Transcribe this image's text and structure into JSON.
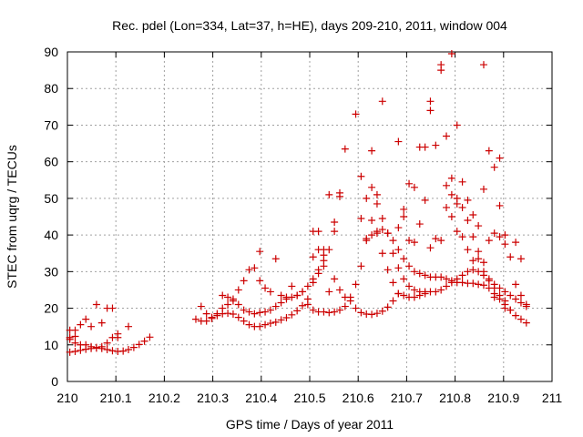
{
  "chart_data": {
    "type": "scatter",
    "title": "Rec. pdel (Lon=334, Lat=37, h=HE), days 209-210, 2011, window 004",
    "xlabel": "GPS time / Days of year 2011",
    "ylabel": "STEC from uqrg / TECUs",
    "xlim": [
      210,
      211
    ],
    "ylim": [
      0,
      90
    ],
    "x_ticks": [
      "210",
      "210.1",
      "210.2",
      "210.3",
      "210.4",
      "210.5",
      "210.6",
      "210.7",
      "210.8",
      "210.9",
      "211"
    ],
    "y_ticks": [
      "0",
      "10",
      "20",
      "30",
      "40",
      "50",
      "60",
      "70",
      "80",
      "90"
    ],
    "x_tick_values": [
      210,
      210.1,
      210.2,
      210.3,
      210.4,
      210.5,
      210.6,
      210.7,
      210.8,
      210.9,
      211
    ],
    "y_tick_values": [
      0,
      10,
      20,
      30,
      40,
      50,
      60,
      70,
      80,
      90
    ],
    "grid": true,
    "marker": "plus",
    "marker_color": "#cc0000",
    "series": [
      {
        "values": [
          [
            210.005,
            8.0
          ],
          [
            210.016,
            8.2
          ],
          [
            210.027,
            8.5
          ],
          [
            210.038,
            8.8
          ],
          [
            210.049,
            9.0
          ],
          [
            210.06,
            9.1
          ],
          [
            210.071,
            9.0
          ],
          [
            210.082,
            8.7
          ],
          [
            210.093,
            8.4
          ],
          [
            210.104,
            8.2
          ],
          [
            210.115,
            8.3
          ],
          [
            210.126,
            8.7
          ],
          [
            210.137,
            9.3
          ],
          [
            210.148,
            10.1
          ],
          [
            210.159,
            11.0
          ],
          [
            210.17,
            12.1
          ],
          [
            210.005,
            11.5
          ],
          [
            210.016,
            10.5
          ],
          [
            210.027,
            10.0
          ],
          [
            210.038,
            10.0
          ],
          [
            210.049,
            9.5
          ],
          [
            210.06,
            9.3
          ],
          [
            210.071,
            9.5
          ],
          [
            210.082,
            10.5
          ],
          [
            210.093,
            12.0
          ],
          [
            210.104,
            13.0
          ],
          [
            210.005,
            14.0
          ],
          [
            210.016,
            14.0
          ],
          [
            210.027,
            15.5
          ],
          [
            210.038,
            17.0
          ],
          [
            210.049,
            15.0
          ],
          [
            210.06,
            21.0
          ],
          [
            210.071,
            16.0
          ],
          [
            210.082,
            20.0
          ],
          [
            210.093,
            20.0
          ],
          [
            210.104,
            12.0
          ],
          [
            210.126,
            15.0
          ],
          [
            210.005,
            12.0
          ],
          [
            210.016,
            12.3
          ],
          [
            210.265,
            17.0
          ],
          [
            210.276,
            16.5
          ],
          [
            210.287,
            16.5
          ],
          [
            210.298,
            17.2
          ],
          [
            210.309,
            18.0
          ],
          [
            210.32,
            18.5
          ],
          [
            210.331,
            18.6
          ],
          [
            210.342,
            18.4
          ],
          [
            210.353,
            17.5
          ],
          [
            210.364,
            16.5
          ],
          [
            210.375,
            15.5
          ],
          [
            210.386,
            15.0
          ],
          [
            210.397,
            15.0
          ],
          [
            210.408,
            15.5
          ],
          [
            210.419,
            15.9
          ],
          [
            210.43,
            16.2
          ],
          [
            210.441,
            16.8
          ],
          [
            210.452,
            17.4
          ],
          [
            210.463,
            18.2
          ],
          [
            210.474,
            19.3
          ],
          [
            210.485,
            20.7
          ],
          [
            210.496,
            22.5
          ],
          [
            210.276,
            20.5
          ],
          [
            210.287,
            18.5
          ],
          [
            210.298,
            17.5
          ],
          [
            210.309,
            18.5
          ],
          [
            210.32,
            23.5
          ],
          [
            210.331,
            23.0
          ],
          [
            210.342,
            22.0
          ],
          [
            210.353,
            21.0
          ],
          [
            210.364,
            19.5
          ],
          [
            210.375,
            19.0
          ],
          [
            210.386,
            18.5
          ],
          [
            210.397,
            18.8
          ],
          [
            210.408,
            19.0
          ],
          [
            210.419,
            19.5
          ],
          [
            210.43,
            20.5
          ],
          [
            210.441,
            21.5
          ],
          [
            210.452,
            22.5
          ],
          [
            210.463,
            23.0
          ],
          [
            210.474,
            23.5
          ],
          [
            210.485,
            24.5
          ],
          [
            210.496,
            26.0
          ],
          [
            210.507,
            28.0
          ],
          [
            210.518,
            30.5
          ],
          [
            210.529,
            33.0
          ],
          [
            210.32,
            20.0
          ],
          [
            210.331,
            21.0
          ],
          [
            210.342,
            22.5
          ],
          [
            210.353,
            25.0
          ],
          [
            210.364,
            27.5
          ],
          [
            210.375,
            30.5
          ],
          [
            210.386,
            31.0
          ],
          [
            210.397,
            27.5
          ],
          [
            210.408,
            25.5
          ],
          [
            210.419,
            24.5
          ],
          [
            210.43,
            33.5
          ],
          [
            210.441,
            23.5
          ],
          [
            210.452,
            23.0
          ],
          [
            210.463,
            26.0
          ],
          [
            210.474,
            23.5
          ],
          [
            210.397,
            35.5
          ],
          [
            210.485,
            24.5
          ],
          [
            210.496,
            21.0
          ],
          [
            210.507,
            19.5
          ],
          [
            210.518,
            19.0
          ],
          [
            210.529,
            19.0
          ],
          [
            210.54,
            18.8
          ],
          [
            210.551,
            19.0
          ],
          [
            210.562,
            19.5
          ],
          [
            210.573,
            20.5
          ],
          [
            210.584,
            22.0
          ],
          [
            210.595,
            20.0
          ],
          [
            210.606,
            18.8
          ],
          [
            210.617,
            18.4
          ],
          [
            210.628,
            18.3
          ],
          [
            210.639,
            18.6
          ],
          [
            210.65,
            19.2
          ],
          [
            210.661,
            20.3
          ],
          [
            210.672,
            22.0
          ],
          [
            210.683,
            24.0
          ],
          [
            210.507,
            34.0
          ],
          [
            210.518,
            36.0
          ],
          [
            210.529,
            31.5
          ],
          [
            210.54,
            24.5
          ],
          [
            210.551,
            28.0
          ],
          [
            210.562,
            25.0
          ],
          [
            210.573,
            23.0
          ],
          [
            210.584,
            23.0
          ],
          [
            210.507,
            27.0
          ],
          [
            210.518,
            29.5
          ],
          [
            210.529,
            34.5
          ],
          [
            210.54,
            36.0
          ],
          [
            210.551,
            43.5
          ],
          [
            210.562,
            50.5
          ],
          [
            210.573,
            63.5
          ],
          [
            210.507,
            41.0
          ],
          [
            210.518,
            41.0
          ],
          [
            210.529,
            36.0
          ],
          [
            210.54,
            51.0
          ],
          [
            210.551,
            41.0
          ],
          [
            210.562,
            51.5
          ],
          [
            210.595,
            26.5
          ],
          [
            210.606,
            31.5
          ],
          [
            210.617,
            38.5
          ],
          [
            210.628,
            40.0
          ],
          [
            210.639,
            41.0
          ],
          [
            210.65,
            41.5
          ],
          [
            210.661,
            40.5
          ],
          [
            210.672,
            38.5
          ],
          [
            210.683,
            36.0
          ],
          [
            210.694,
            33.5
          ],
          [
            210.705,
            31.5
          ],
          [
            210.716,
            30.0
          ],
          [
            210.727,
            29.5
          ],
          [
            210.738,
            29.0
          ],
          [
            210.749,
            28.5
          ],
          [
            210.76,
            28.5
          ],
          [
            210.771,
            28.5
          ],
          [
            210.782,
            28.0
          ],
          [
            210.793,
            27.5
          ],
          [
            210.804,
            27.0
          ],
          [
            210.815,
            27.0
          ],
          [
            210.826,
            26.8
          ],
          [
            210.837,
            26.8
          ],
          [
            210.848,
            26.5
          ],
          [
            210.859,
            26.3
          ],
          [
            210.87,
            25.5
          ],
          [
            210.881,
            24.0
          ],
          [
            210.892,
            22.5
          ],
          [
            210.903,
            21.0
          ],
          [
            210.914,
            19.5
          ],
          [
            210.925,
            18.0
          ],
          [
            210.936,
            17.0
          ],
          [
            210.947,
            16.0
          ],
          [
            210.606,
            44.5
          ],
          [
            210.617,
            50.0
          ],
          [
            210.628,
            53.0
          ],
          [
            210.639,
            48.5
          ],
          [
            210.65,
            44.5
          ],
          [
            210.661,
            40.5
          ],
          [
            210.672,
            35.0
          ],
          [
            210.683,
            31.0
          ],
          [
            210.694,
            28.0
          ],
          [
            210.705,
            26.0
          ],
          [
            210.716,
            25.0
          ],
          [
            210.727,
            24.5
          ],
          [
            210.738,
            24.5
          ],
          [
            210.749,
            24.5
          ],
          [
            210.76,
            24.5
          ],
          [
            210.771,
            25.0
          ],
          [
            210.782,
            26.0
          ],
          [
            210.793,
            27.0
          ],
          [
            210.804,
            28.0
          ],
          [
            210.815,
            29.0
          ],
          [
            210.826,
            30.0
          ],
          [
            210.837,
            30.5
          ],
          [
            210.848,
            30.0
          ],
          [
            210.859,
            29.0
          ],
          [
            210.87,
            27.5
          ],
          [
            210.881,
            25.5
          ],
          [
            210.892,
            23.5
          ],
          [
            210.903,
            22.0
          ],
          [
            210.595,
            73.0
          ],
          [
            210.606,
            56.0
          ],
          [
            210.628,
            63.0
          ],
          [
            210.639,
            51.0
          ],
          [
            210.65,
            76.5
          ],
          [
            210.683,
            65.5
          ],
          [
            210.694,
            47.0
          ],
          [
            210.705,
            54.0
          ],
          [
            210.716,
            53.0
          ],
          [
            210.727,
            64.0
          ],
          [
            210.738,
            64.0
          ],
          [
            210.749,
            74.0
          ],
          [
            210.749,
            76.5
          ],
          [
            210.76,
            64.5
          ],
          [
            210.771,
            85.0
          ],
          [
            210.771,
            86.5
          ],
          [
            210.782,
            67.0
          ],
          [
            210.793,
            89.5
          ],
          [
            210.804,
            70.0
          ],
          [
            210.617,
            39.0
          ],
          [
            210.628,
            44.0
          ],
          [
            210.639,
            40.5
          ],
          [
            210.65,
            35.0
          ],
          [
            210.661,
            30.5
          ],
          [
            210.672,
            27.0
          ],
          [
            210.683,
            24.0
          ],
          [
            210.694,
            23.5
          ],
          [
            210.705,
            23.0
          ],
          [
            210.716,
            23.0
          ],
          [
            210.727,
            23.5
          ],
          [
            210.738,
            24.0
          ],
          [
            210.683,
            42.0
          ],
          [
            210.694,
            45.0
          ],
          [
            210.705,
            38.5
          ],
          [
            210.716,
            38.0
          ],
          [
            210.727,
            43.0
          ],
          [
            210.738,
            49.5
          ],
          [
            210.749,
            36.5
          ],
          [
            210.76,
            39.0
          ],
          [
            210.771,
            38.5
          ],
          [
            210.782,
            53.5
          ],
          [
            210.793,
            55.5
          ],
          [
            210.804,
            48.5
          ],
          [
            210.782,
            47.5
          ],
          [
            210.793,
            45.0
          ],
          [
            210.804,
            50.0
          ],
          [
            210.815,
            47.5
          ],
          [
            210.826,
            44.0
          ],
          [
            210.837,
            39.5
          ],
          [
            210.848,
            35.5
          ],
          [
            210.859,
            32.5
          ],
          [
            210.87,
            38.5
          ],
          [
            210.881,
            40.5
          ],
          [
            210.892,
            39.5
          ],
          [
            210.903,
            37.5
          ],
          [
            210.793,
            51.0
          ],
          [
            210.804,
            41.0
          ],
          [
            210.815,
            39.5
          ],
          [
            210.826,
            36.0
          ],
          [
            210.837,
            33.0
          ],
          [
            210.848,
            33.5
          ],
          [
            210.859,
            30.0
          ],
          [
            210.87,
            28.0
          ],
          [
            210.881,
            26.5
          ],
          [
            210.892,
            25.5
          ],
          [
            210.903,
            24.5
          ],
          [
            210.914,
            23.5
          ],
          [
            210.925,
            22.5
          ],
          [
            210.936,
            21.5
          ],
          [
            210.947,
            20.5
          ],
          [
            210.815,
            54.5
          ],
          [
            210.826,
            49.5
          ],
          [
            210.837,
            45.5
          ],
          [
            210.848,
            42.5
          ],
          [
            210.859,
            52.5
          ],
          [
            210.87,
            63.0
          ],
          [
            210.881,
            58.5
          ],
          [
            210.892,
            48.0
          ],
          [
            210.903,
            40.0
          ],
          [
            210.914,
            34.0
          ],
          [
            210.925,
            38.0
          ],
          [
            210.936,
            33.5
          ],
          [
            210.859,
            86.5
          ],
          [
            210.892,
            61.0
          ],
          [
            210.881,
            23.0
          ],
          [
            210.903,
            20.0
          ],
          [
            210.914,
            19.5
          ],
          [
            210.925,
            26.5
          ],
          [
            210.936,
            23.5
          ],
          [
            210.947,
            21.0
          ]
        ]
      }
    ]
  }
}
